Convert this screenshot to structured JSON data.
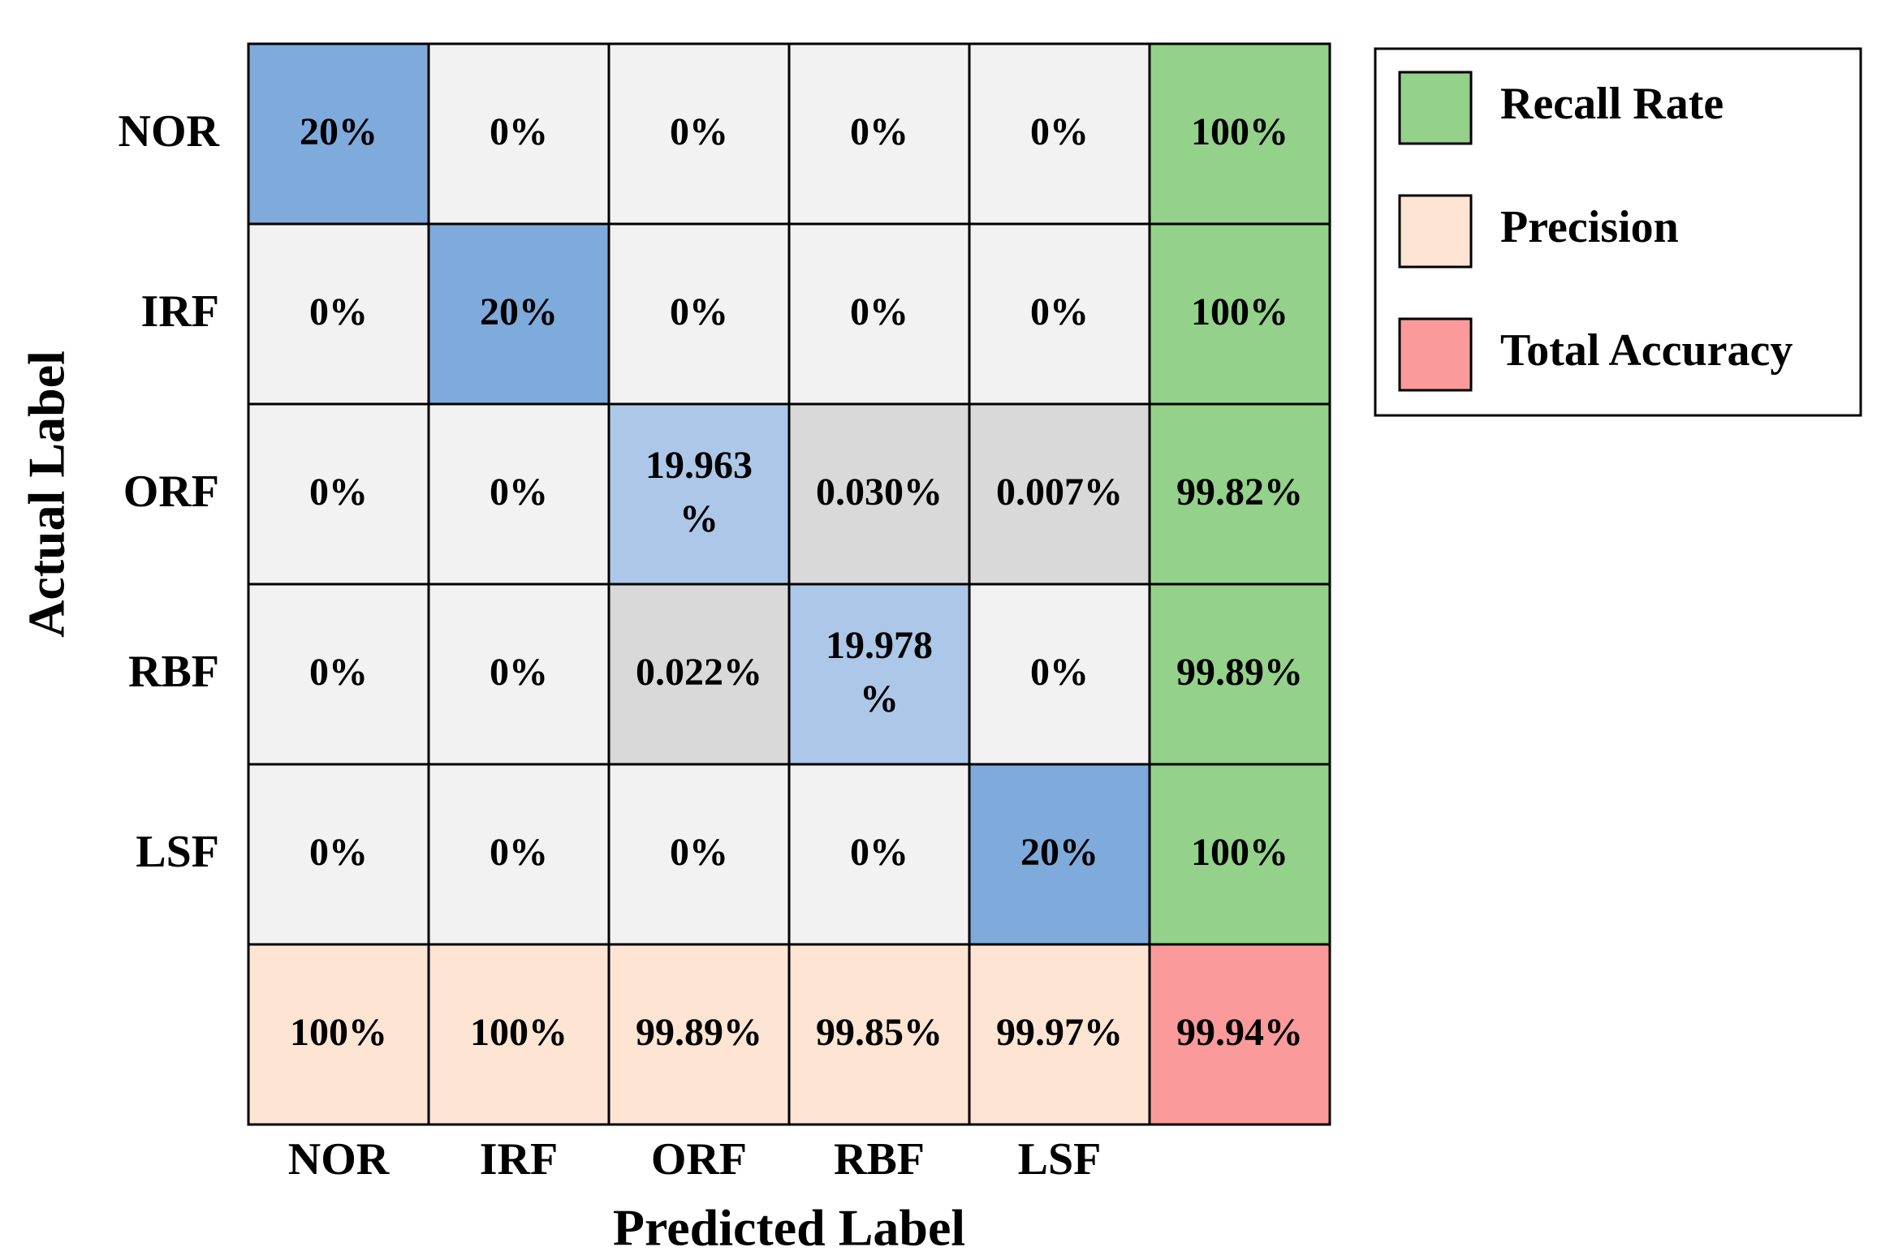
{
  "chart_data": {
    "type": "confusion_matrix",
    "xlabel": "Predicted Label",
    "ylabel": "Actual Label",
    "categories": [
      "NOR",
      "IRF",
      "ORF",
      "RBF",
      "LSF"
    ],
    "values": [
      [
        20,
        0,
        0,
        0,
        0
      ],
      [
        0,
        20,
        0,
        0,
        0
      ],
      [
        0,
        0,
        19.963,
        0.03,
        0.007
      ],
      [
        0,
        0,
        0.022,
        19.978,
        0
      ],
      [
        0,
        0,
        0,
        0,
        20
      ]
    ],
    "value_labels": [
      [
        "20%",
        "0%",
        "0%",
        "0%",
        "0%"
      ],
      [
        "0%",
        "20%",
        "0%",
        "0%",
        "0%"
      ],
      [
        "0%",
        "0%",
        "19.963 %",
        "0.030%",
        "0.007%"
      ],
      [
        "0%",
        "0%",
        "0.022%",
        "19.978 %",
        "0%"
      ],
      [
        "0%",
        "0%",
        "0%",
        "0%",
        "20%"
      ]
    ],
    "cell_colors": [
      [
        "#7faadc",
        "#f2f2f2",
        "#f2f2f2",
        "#f2f2f2",
        "#f2f2f2"
      ],
      [
        "#f2f2f2",
        "#7faadc",
        "#f2f2f2",
        "#f2f2f2",
        "#f2f2f2"
      ],
      [
        "#f2f2f2",
        "#f2f2f2",
        "#adc7e8",
        "#d9d9d9",
        "#d9d9d9"
      ],
      [
        "#f2f2f2",
        "#f2f2f2",
        "#d9d9d9",
        "#adc7e8",
        "#f2f2f2"
      ],
      [
        "#f2f2f2",
        "#f2f2f2",
        "#f2f2f2",
        "#f2f2f2",
        "#7faadc"
      ]
    ],
    "recall": {
      "name": "Recall Rate",
      "color": "#94d18a",
      "values": [
        100,
        100,
        99.82,
        99.89,
        100
      ],
      "value_labels": [
        "100%",
        "100%",
        "99.82%",
        "99.89%",
        "100%"
      ]
    },
    "precision": {
      "name": "Precision",
      "color": "#fde4d3",
      "values": [
        100,
        100,
        99.89,
        99.85,
        99.97
      ],
      "value_labels": [
        "100%",
        "100%",
        "99.89%",
        "99.85%",
        "99.97%"
      ]
    },
    "total_accuracy": {
      "name": "Total Accuracy",
      "color": "#fa9a9a",
      "value": 99.94,
      "value_label": "99.94%"
    }
  }
}
